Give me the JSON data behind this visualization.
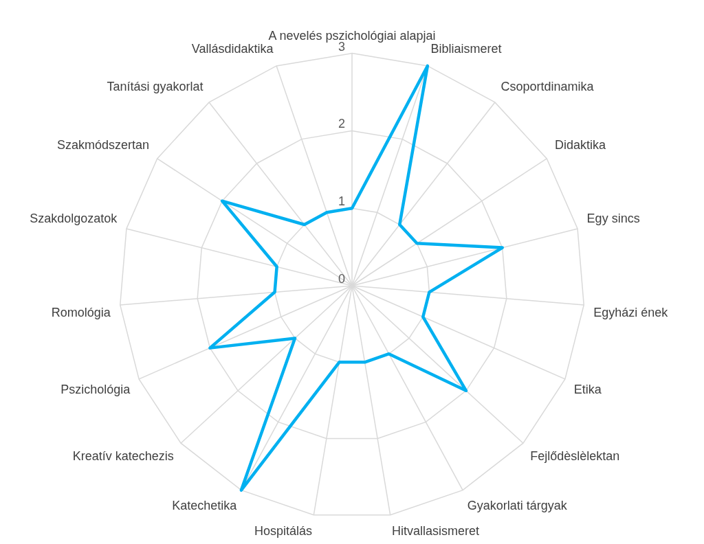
{
  "chart_data": {
    "type": "radar",
    "categories": [
      "A nevelés pszichológiai alapjai",
      "Bibliaismeret",
      "Csoportdinamika",
      "Didaktika",
      "Egy sincs",
      "Egyházi ének",
      "Etika",
      "Fejlődèslèlektan",
      "Gyakorlati tárgyak",
      "Hitvallasismeret",
      "Hospitálás",
      "Katechetika",
      "Kreatív katechezis",
      "Pszichológia",
      "Romológia",
      "Szakdolgozatok",
      "Szakmódszertan",
      "Tanítási gyakorlat",
      "Vallásdidaktika"
    ],
    "series": [
      {
        "color": "#00b0f0",
        "values": [
          1,
          3,
          1,
          1,
          2,
          1,
          1,
          2,
          1,
          1,
          1,
          3,
          1,
          2,
          1,
          1,
          2,
          1,
          1
        ]
      }
    ],
    "ylim": [
      0,
      3
    ],
    "yticks": [
      0,
      1,
      2,
      3
    ],
    "grid": true,
    "legend": false,
    "marker": "none"
  }
}
